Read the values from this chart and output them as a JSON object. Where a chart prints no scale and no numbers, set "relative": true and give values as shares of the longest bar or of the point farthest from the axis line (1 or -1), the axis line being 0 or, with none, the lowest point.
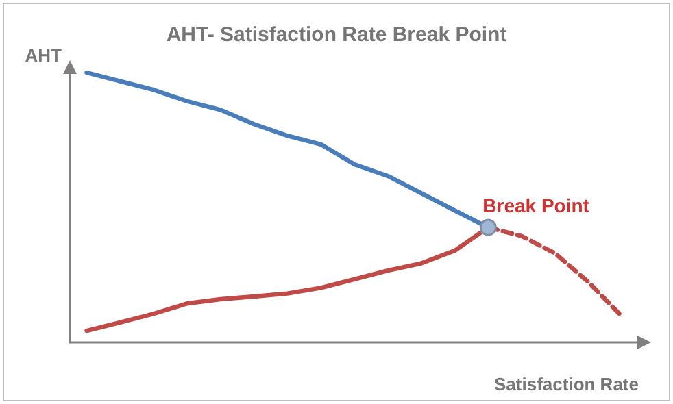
{
  "chart_data": {
    "type": "line",
    "title": "AHT- Satisfaction Rate Break Point",
    "xlabel": "Satisfaction Rate",
    "ylabel": "AHT",
    "relative": true,
    "tick_labels": false,
    "grid": false,
    "marker": "none",
    "categories": [
      null,
      null,
      null,
      null,
      null,
      null,
      null,
      null,
      null,
      null,
      null,
      null,
      null,
      null,
      null,
      null,
      null
    ],
    "series": [
      {
        "color": "#4a7ebb",
        "line_style": "solid",
        "values": [
          1,
          0.968,
          0.936,
          0.894,
          0.862,
          0.809,
          0.766,
          0.734,
          0.66,
          0.617,
          0.553,
          0.489,
          0.426,
          null,
          null,
          null,
          null
        ]
      },
      {
        "color": "#be4b48",
        "line_style": "solid",
        "values": [
          0.043,
          0.074,
          0.106,
          0.144,
          0.16,
          0.17,
          0.181,
          0.202,
          0.234,
          0.266,
          0.293,
          0.34,
          0.426,
          null,
          null,
          null,
          null
        ]
      },
      {
        "color": "#be4b48",
        "line_style": "dashed",
        "values": [
          null,
          null,
          null,
          null,
          null,
          null,
          null,
          null,
          null,
          null,
          null,
          null,
          0.426,
          0.394,
          0.33,
          0.223,
          0.096
        ]
      }
    ],
    "annotations": [
      "Break Point"
    ]
  }
}
